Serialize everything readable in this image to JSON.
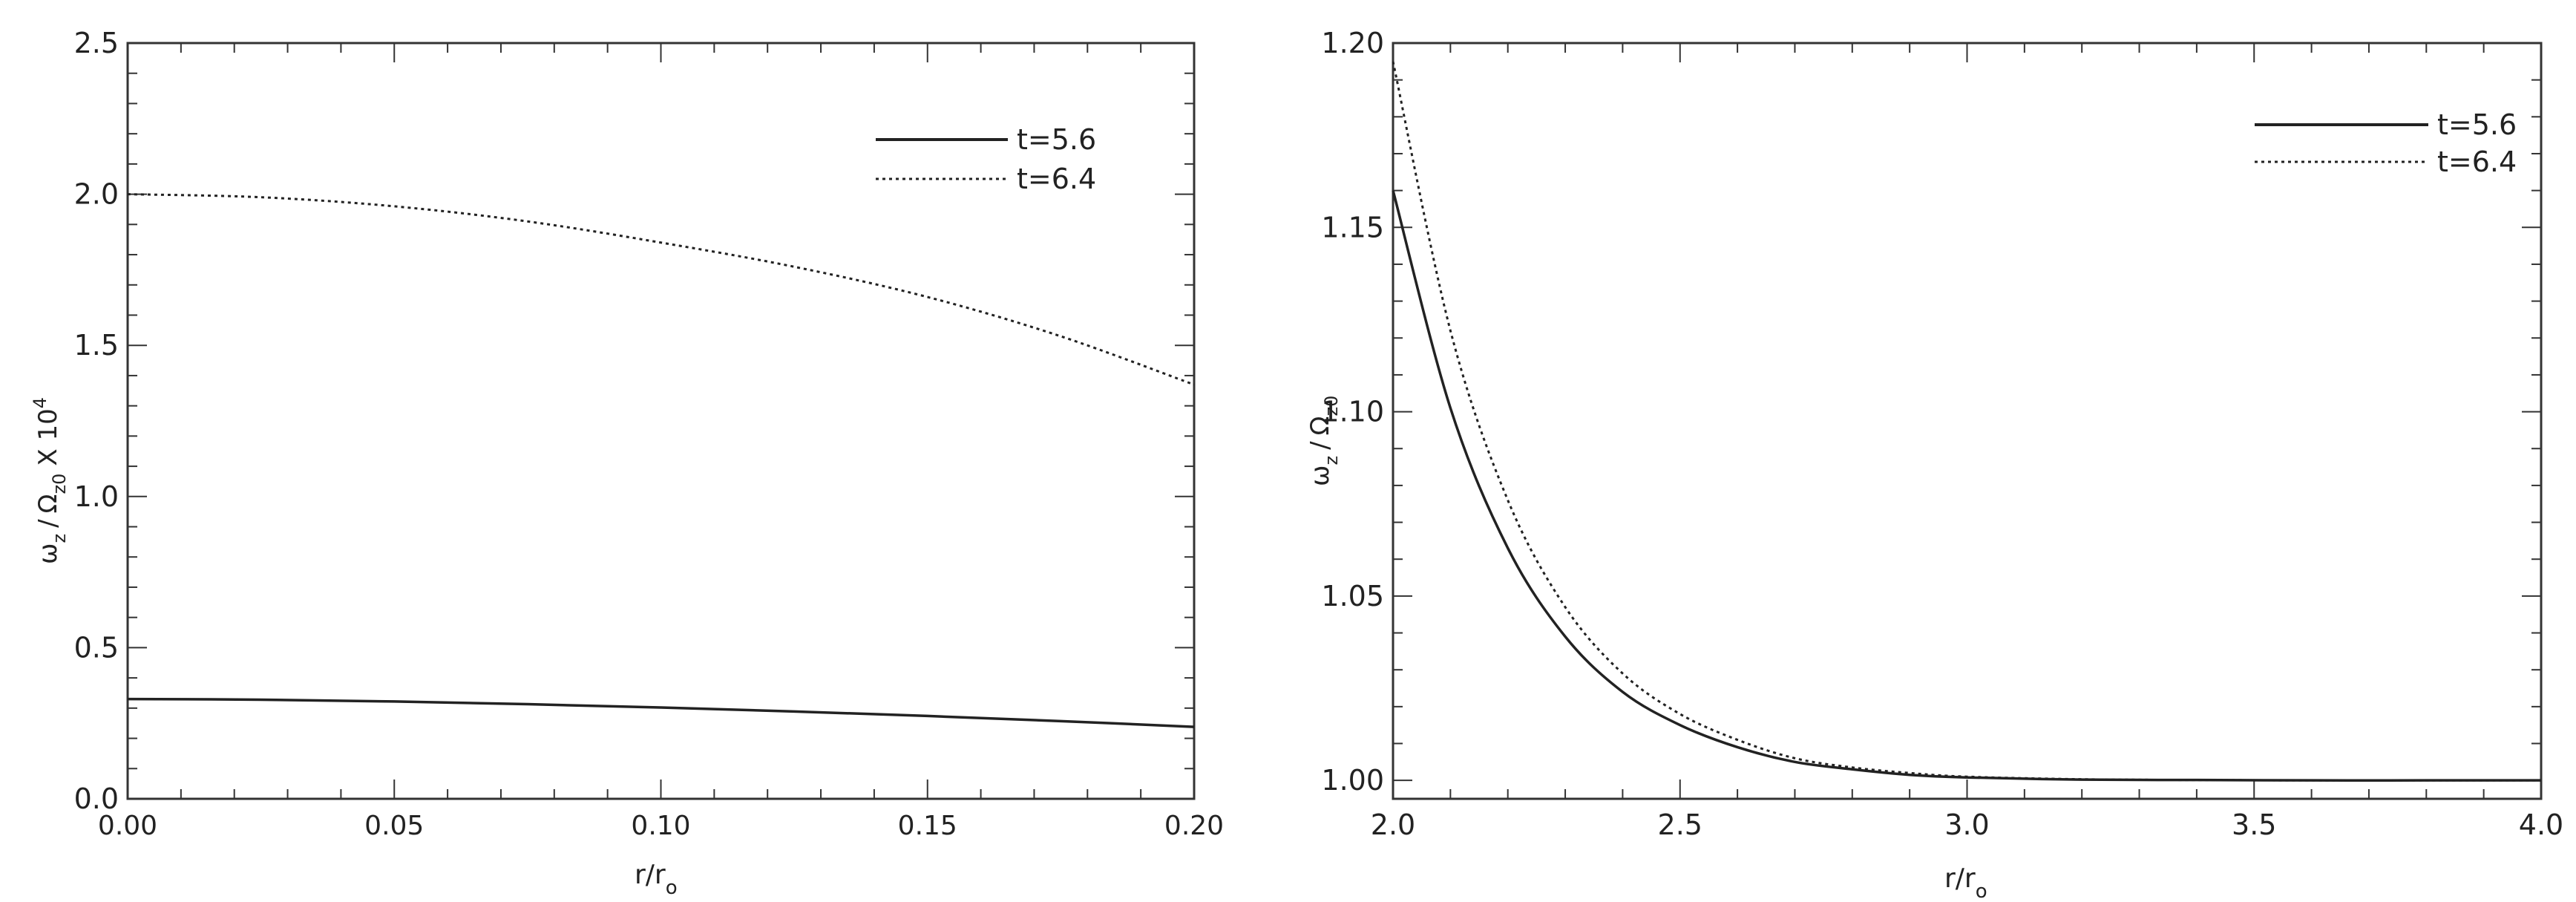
{
  "chart_data": [
    {
      "type": "line",
      "title": "",
      "xlabel": "r/r",
      "xlabel_sub": "o",
      "ylabel_main": "ω",
      "ylabel_sub": "z",
      "ylabel_sep": "/",
      "ylabel_omega": "Ω",
      "ylabel_omega_sub": "z0",
      "ylabel_scale": "X 10",
      "ylabel_exp": "4",
      "xlim": [
        0.0,
        0.2
      ],
      "ylim": [
        0.0,
        2.5
      ],
      "xticks": [
        0.0,
        0.05,
        0.1,
        0.15,
        0.2
      ],
      "xtick_labels": [
        "0.00",
        "0.05",
        "0.10",
        "0.15",
        "0.20"
      ],
      "yticks": [
        0.0,
        0.5,
        1.0,
        1.5,
        2.0,
        2.5
      ],
      "ytick_labels": [
        "0.0",
        "0.5",
        "1.0",
        "1.5",
        "2.0",
        "2.5"
      ],
      "x_minor": 0.01,
      "y_minor": 0.1,
      "legend": "top-right",
      "series": [
        {
          "name": "t=5.6",
          "style": "solid",
          "x": [
            0.0,
            0.025,
            0.05,
            0.075,
            0.1,
            0.125,
            0.15,
            0.175,
            0.2
          ],
          "y": [
            0.33,
            0.328,
            0.322,
            0.313,
            0.302,
            0.289,
            0.274,
            0.257,
            0.238
          ]
        },
        {
          "name": "t=6.4",
          "style": "dotted",
          "x": [
            0.0,
            0.025,
            0.05,
            0.075,
            0.1,
            0.125,
            0.15,
            0.175,
            0.2
          ],
          "y": [
            2.0,
            1.99,
            1.96,
            1.91,
            1.84,
            1.76,
            1.66,
            1.53,
            1.37
          ]
        }
      ]
    },
    {
      "type": "line",
      "title": "",
      "xlabel": "r/r",
      "xlabel_sub": "o",
      "ylabel_main": "ω",
      "ylabel_sub": "z",
      "ylabel_sep": "/",
      "ylabel_omega": "Ω",
      "ylabel_omega_sub": "z0",
      "xlim": [
        2.0,
        4.0
      ],
      "ylim": [
        0.995,
        1.2
      ],
      "xticks": [
        2.0,
        2.5,
        3.0,
        3.5,
        4.0
      ],
      "xtick_labels": [
        "2.0",
        "2.5",
        "3.0",
        "3.5",
        "4.0"
      ],
      "yticks": [
        1.0,
        1.05,
        1.1,
        1.15,
        1.2
      ],
      "ytick_labels": [
        "1.00",
        "1.05",
        "1.10",
        "1.15",
        "1.20"
      ],
      "x_minor": 0.1,
      "y_minor": 0.01,
      "legend": "top-right",
      "series": [
        {
          "name": "t=5.6",
          "style": "solid",
          "x": [
            2.0,
            2.1,
            2.2,
            2.3,
            2.4,
            2.5,
            2.6,
            2.7,
            2.8,
            2.9,
            3.0,
            3.2,
            3.4,
            3.6,
            3.8,
            4.0
          ],
          "y": [
            1.16,
            1.101,
            1.063,
            1.039,
            1.024,
            1.015,
            1.009,
            1.005,
            1.003,
            1.0015,
            1.0008,
            1.0002,
            1.0001,
            1.0,
            1.0,
            1.0
          ]
        },
        {
          "name": "t=6.4",
          "style": "dotted",
          "x": [
            2.0,
            2.1,
            2.2,
            2.3,
            2.4,
            2.5,
            2.6,
            2.7,
            2.8,
            2.9,
            3.0,
            3.2,
            3.4,
            3.6,
            3.8,
            4.0
          ],
          "y": [
            1.195,
            1.122,
            1.076,
            1.047,
            1.029,
            1.018,
            1.011,
            1.006,
            1.0035,
            1.002,
            1.001,
            1.0003,
            1.0001,
            1.0,
            1.0,
            1.0
          ]
        }
      ]
    }
  ]
}
